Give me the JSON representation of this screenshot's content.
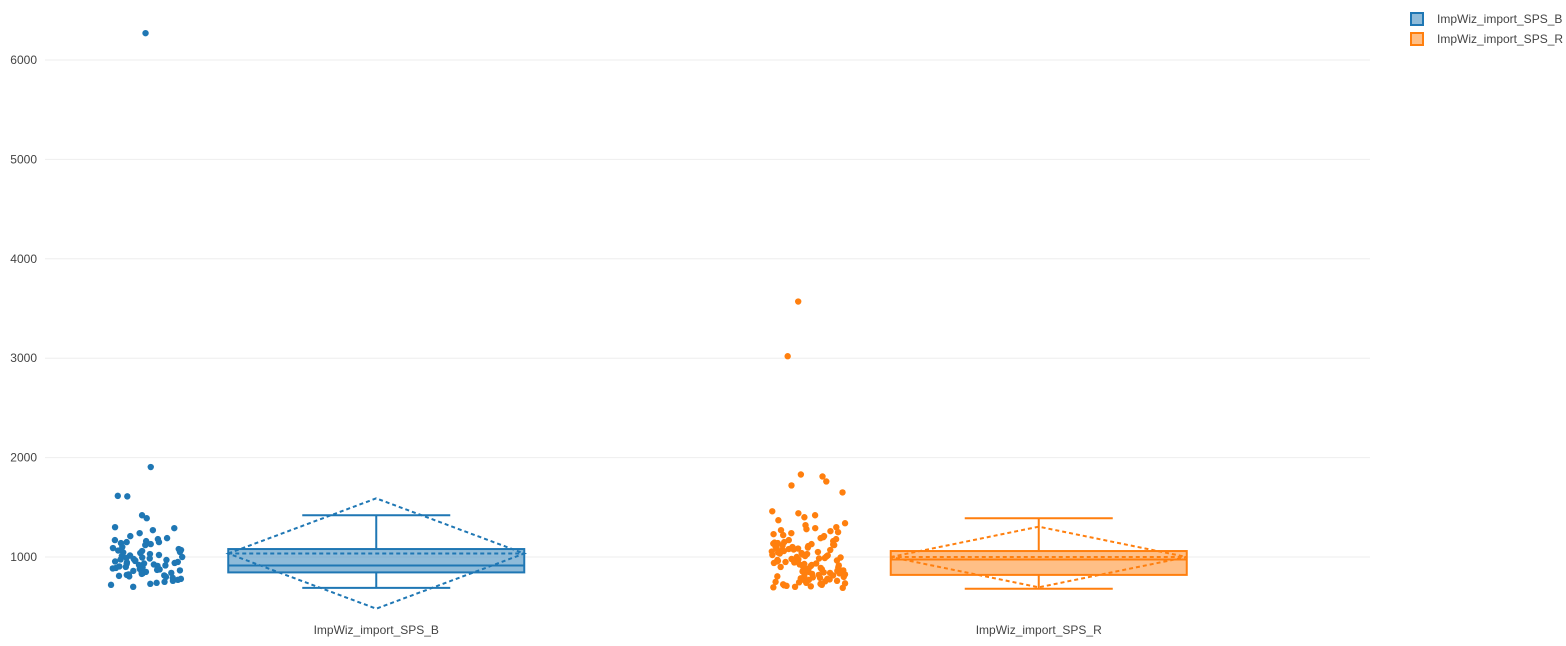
{
  "chart_data": {
    "type": "box",
    "y_ticks": [
      1000,
      2000,
      3000,
      4000,
      5000,
      6000
    ],
    "ylim": [
      350,
      6600
    ],
    "grid": true,
    "legend_position": "top-right",
    "box_mean": "sd",
    "boxpoints": "all",
    "series": [
      {
        "name": "ImpWiz_import_SPS_B",
        "category": "ImpWiz_import_SPS_B",
        "color": "#1f77b4",
        "fill": "rgba(31,119,180,0.5)",
        "whisker_low": 690,
        "q1": 845,
        "median": 915,
        "q3": 1080,
        "whisker_high": 1420,
        "mean": 1035,
        "sd": 555,
        "points": [
          6270,
          1905,
          1615,
          1610,
          1420,
          1390,
          1300,
          1290,
          1270,
          1240,
          1210,
          1190,
          1180,
          1170,
          1160,
          1150,
          1150,
          1140,
          1130,
          1120,
          1100,
          1090,
          1080,
          1070,
          1065,
          1060,
          1050,
          1045,
          1040,
          1030,
          1020,
          1015,
          1010,
          1000,
          995,
          990,
          985,
          980,
          975,
          970,
          965,
          960,
          955,
          950,
          945,
          940,
          935,
          930,
          925,
          920,
          915,
          910,
          905,
          900,
          895,
          890,
          885,
          880,
          875,
          870,
          865,
          860,
          855,
          850,
          845,
          840,
          835,
          830,
          825,
          820,
          815,
          810,
          805,
          800,
          790,
          780,
          770,
          760,
          750,
          740,
          730,
          720,
          700
        ]
      },
      {
        "name": "ImpWiz_import_SPS_R",
        "category": "ImpWiz_import_SPS_R",
        "color": "#ff7f0e",
        "fill": "rgba(255,127,14,0.5)",
        "whisker_low": 680,
        "q1": 820,
        "median": 975,
        "q3": 1060,
        "whisker_high": 1390,
        "mean": 1000,
        "sd": 305,
        "points": [
          3570,
          3020,
          1830,
          1810,
          1760,
          1720,
          1650,
          1460,
          1440,
          1420,
          1400,
          1370,
          1340,
          1320,
          1300,
          1290,
          1280,
          1270,
          1260,
          1250,
          1240,
          1230,
          1220,
          1210,
          1200,
          1190,
          1180,
          1170,
          1160,
          1150,
          1145,
          1140,
          1135,
          1130,
          1125,
          1120,
          1115,
          1110,
          1105,
          1100,
          1095,
          1090,
          1085,
          1080,
          1075,
          1070,
          1065,
          1060,
          1055,
          1050,
          1045,
          1040,
          1035,
          1030,
          1025,
          1020,
          1015,
          1010,
          1005,
          1000,
          995,
          990,
          985,
          980,
          975,
          970,
          965,
          960,
          955,
          950,
          945,
          940,
          935,
          930,
          925,
          920,
          915,
          910,
          905,
          900,
          895,
          890,
          885,
          880,
          875,
          870,
          865,
          860,
          855,
          850,
          845,
          840,
          835,
          830,
          825,
          820,
          815,
          810,
          805,
          800,
          795,
          790,
          785,
          780,
          775,
          770,
          765,
          760,
          755,
          750,
          745,
          740,
          735,
          730,
          725,
          720,
          715,
          710,
          705,
          700,
          695,
          690
        ]
      }
    ]
  }
}
